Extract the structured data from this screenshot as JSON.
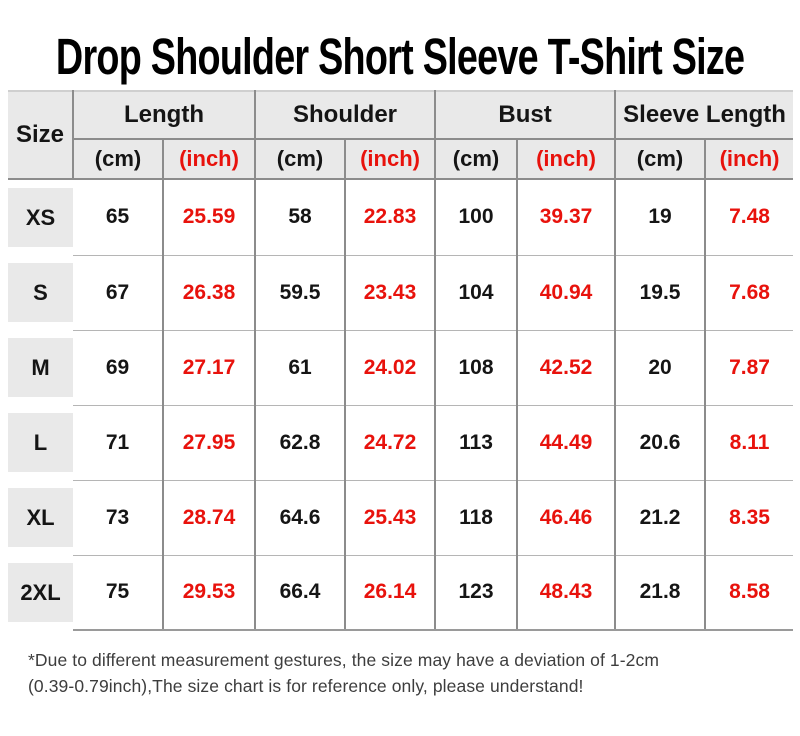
{
  "title": "Drop Shoulder Short Sleeve T-Shirt Size",
  "colors": {
    "header_bg": "#e9e9e9",
    "size_cell_bg": "#e9e9e9",
    "inch_red": "#e8120c",
    "text_black": "#151515",
    "grid_vertical": "#8c8c8c",
    "grid_horizontal": "#b5b5b5",
    "table_edge": "#9a9a9a",
    "footnote_color": "#3d3d3d"
  },
  "table": {
    "size_header": "Size",
    "groups": [
      {
        "label": "Length"
      },
      {
        "label": "Shoulder"
      },
      {
        "label": "Bust"
      },
      {
        "label": "Sleeve Length"
      }
    ],
    "unit_cm": "(cm)",
    "unit_inch": "(inch)",
    "rows": [
      {
        "size": "XS",
        "length_cm": "65",
        "length_in": "25.59",
        "shoulder_cm": "58",
        "shoulder_in": "22.83",
        "bust_cm": "100",
        "bust_in": "39.37",
        "sleeve_cm": "19",
        "sleeve_in": "7.48"
      },
      {
        "size": "S",
        "length_cm": "67",
        "length_in": "26.38",
        "shoulder_cm": "59.5",
        "shoulder_in": "23.43",
        "bust_cm": "104",
        "bust_in": "40.94",
        "sleeve_cm": "19.5",
        "sleeve_in": "7.68"
      },
      {
        "size": "M",
        "length_cm": "69",
        "length_in": "27.17",
        "shoulder_cm": "61",
        "shoulder_in": "24.02",
        "bust_cm": "108",
        "bust_in": "42.52",
        "sleeve_cm": "20",
        "sleeve_in": "7.87"
      },
      {
        "size": "L",
        "length_cm": "71",
        "length_in": "27.95",
        "shoulder_cm": "62.8",
        "shoulder_in": "24.72",
        "bust_cm": "113",
        "bust_in": "44.49",
        "sleeve_cm": "20.6",
        "sleeve_in": "8.11"
      },
      {
        "size": "XL",
        "length_cm": "73",
        "length_in": "28.74",
        "shoulder_cm": "64.6",
        "shoulder_in": "25.43",
        "bust_cm": "118",
        "bust_in": "46.46",
        "sleeve_cm": "21.2",
        "sleeve_in": "8.35"
      },
      {
        "size": "2XL",
        "length_cm": "75",
        "length_in": "29.53",
        "shoulder_cm": "66.4",
        "shoulder_in": "26.14",
        "bust_cm": "123",
        "bust_in": "48.43",
        "sleeve_cm": "21.8",
        "sleeve_in": "8.58"
      }
    ]
  },
  "footnote": {
    "line1": "*Due to different measurement gestures, the size may have a deviation of 1-2cm",
    "line2": "(0.39-0.79inch),The size chart is for reference only, please understand!"
  }
}
